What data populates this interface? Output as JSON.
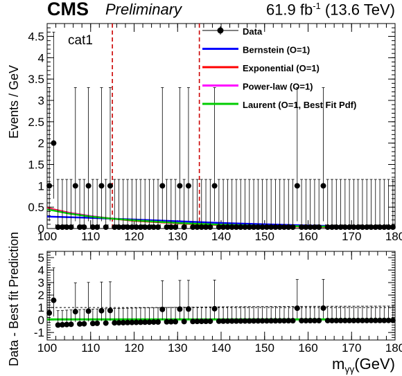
{
  "header": {
    "experiment": "CMS",
    "status": "Preliminary",
    "lumi_prefix": "61.9 fb",
    "lumi_sup": "-1",
    "lumi_suffix": " (13.6 TeV)"
  },
  "chart_data": [
    {
      "type": "scatter",
      "panel": "main",
      "category_label": "cat1",
      "ylabel": "Events / GeV",
      "xlim": [
        100,
        180
      ],
      "ylim": [
        0,
        4.8
      ],
      "yticks": [
        0,
        0.5,
        1,
        1.5,
        2,
        2.5,
        3,
        3.5,
        4,
        4.5
      ],
      "ytick_labels": [
        "0",
        "0.5",
        "1",
        "1.5",
        "2",
        "2.5",
        "3",
        "3.5",
        "4",
        "4.5"
      ],
      "xticks": [
        100,
        110,
        120,
        130,
        140,
        150,
        160,
        170,
        180
      ],
      "xtick_labels": [
        "100",
        "110",
        "120",
        "130",
        "140",
        "150",
        "160",
        "170",
        "180"
      ],
      "signal_window": [
        115,
        135
      ],
      "data": {
        "name": "Data",
        "x": [
          100.5,
          101.5,
          102.5,
          103.5,
          104.5,
          105.5,
          106.5,
          107.5,
          108.5,
          109.5,
          110.5,
          111.5,
          112.5,
          113.5,
          114.5,
          115.5,
          116.5,
          117.5,
          118.5,
          119.5,
          120.5,
          121.5,
          122.5,
          123.5,
          124.5,
          125.5,
          126.5,
          127.5,
          128.5,
          129.5,
          130.5,
          131.5,
          132.5,
          133.5,
          134.5,
          135.5,
          136.5,
          137.5,
          138.5,
          139.5,
          140.5,
          141.5,
          142.5,
          143.5,
          144.5,
          145.5,
          146.5,
          147.5,
          148.5,
          149.5,
          150.5,
          151.5,
          152.5,
          153.5,
          154.5,
          155.5,
          156.5,
          157.5,
          158.5,
          159.5,
          160.5,
          161.5,
          162.5,
          163.5,
          164.5,
          165.5,
          166.5,
          167.5,
          168.5,
          169.5,
          170.5,
          171.5,
          172.5,
          173.5,
          174.5,
          175.5,
          176.5,
          177.5,
          178.5,
          179.5
        ],
        "y": [
          1,
          2,
          0,
          0,
          0,
          0,
          1,
          0,
          0,
          1,
          0,
          0,
          1,
          0,
          1,
          0,
          0,
          0,
          0,
          0,
          0,
          0,
          0,
          0,
          0,
          0,
          1,
          0,
          0,
          0,
          1,
          0,
          1,
          0,
          0,
          0,
          0,
          0,
          1,
          0,
          0,
          0,
          0,
          0,
          0,
          0,
          0,
          0,
          0,
          0,
          0,
          0,
          0,
          0,
          0,
          0,
          0,
          1,
          0,
          0,
          0,
          0,
          0,
          1,
          0,
          0,
          0,
          0,
          0,
          0,
          0,
          0,
          0,
          0,
          0,
          0,
          0,
          0,
          0,
          0
        ],
        "err_up": [
          2.3,
          2.6,
          1.15,
          1.15,
          1.15,
          1.15,
          2.3,
          1.15,
          1.15,
          2.3,
          1.15,
          1.15,
          2.3,
          1.15,
          2.3,
          1.15,
          1.15,
          1.15,
          1.15,
          1.15,
          1.15,
          1.15,
          1.15,
          1.15,
          1.15,
          1.15,
          2.3,
          1.15,
          1.15,
          1.15,
          2.3,
          1.15,
          2.3,
          1.15,
          1.15,
          1.15,
          1.15,
          1.15,
          2.3,
          1.15,
          1.15,
          1.15,
          1.15,
          1.15,
          1.15,
          1.15,
          1.15,
          1.15,
          1.15,
          1.15,
          1.15,
          1.15,
          1.15,
          1.15,
          1.15,
          1.15,
          1.15,
          2.3,
          1.15,
          1.15,
          1.15,
          1.15,
          1.15,
          2.3,
          1.15,
          1.15,
          1.15,
          1.15,
          1.15,
          1.15,
          1.15,
          1.15,
          1.15,
          1.15,
          1.15,
          1.15,
          1.15,
          1.15,
          1.15,
          1.15
        ],
        "err_down": [
          0.83,
          1.3,
          0,
          0,
          0,
          0,
          0.83,
          0,
          0,
          0.83,
          0,
          0,
          0.83,
          0,
          0.83,
          0,
          0,
          0,
          0,
          0,
          0,
          0,
          0,
          0,
          0,
          0,
          0.83,
          0,
          0,
          0,
          0.83,
          0,
          0.83,
          0,
          0,
          0,
          0,
          0,
          0.83,
          0,
          0,
          0,
          0,
          0,
          0,
          0,
          0,
          0,
          0,
          0,
          0,
          0,
          0,
          0,
          0,
          0,
          0,
          0.83,
          0,
          0,
          0,
          0,
          0,
          0.83,
          0,
          0,
          0,
          0,
          0,
          0,
          0,
          0,
          0,
          0,
          0,
          0,
          0,
          0,
          0,
          0
        ],
        "color": "#000000"
      },
      "series": [
        {
          "name": "Bernstein (O=1)",
          "color": "#0000ff",
          "x": [
            100,
            110,
            120,
            130,
            140,
            150,
            160,
            170,
            180
          ],
          "values": [
            0.28,
            0.25,
            0.21,
            0.17,
            0.13,
            0.1,
            0.07,
            0.05,
            0.03
          ]
        },
        {
          "name": "Exponential (O=1)",
          "color": "#ff0000",
          "x": [
            100,
            105,
            110,
            115,
            120,
            130,
            140,
            150,
            160,
            170,
            180
          ],
          "values": [
            0.48,
            0.37,
            0.29,
            0.23,
            0.18,
            0.12,
            0.08,
            0.055,
            0.04,
            0.03,
            0.02
          ]
        },
        {
          "name": "Power-law (O=1)",
          "color": "#ff00ff",
          "x": [
            100,
            105,
            110,
            115,
            120,
            130,
            140,
            150,
            160,
            170,
            180
          ],
          "values": [
            0.46,
            0.36,
            0.29,
            0.23,
            0.19,
            0.13,
            0.09,
            0.065,
            0.05,
            0.04,
            0.03
          ]
        },
        {
          "name": "Laurent (O=1, Best Fit Pdf)",
          "color": "#00cc00",
          "x": [
            100,
            105,
            110,
            115,
            120,
            130,
            140,
            150,
            160,
            170,
            180
          ],
          "values": [
            0.45,
            0.35,
            0.28,
            0.23,
            0.19,
            0.13,
            0.09,
            0.065,
            0.05,
            0.04,
            0.03
          ]
        }
      ],
      "legend": {
        "placement": "top-right",
        "entries": [
          "Data",
          "Bernstein (O=1)",
          "Exponential (O=1)",
          "Power-law (O=1)",
          "Laurent (O=1, Best Fit Pdf)"
        ]
      }
    },
    {
      "type": "scatter",
      "panel": "ratio",
      "ylabel": "Data - Best fit Prediction",
      "xlabel_main": "m",
      "xlabel_sub": "γγ",
      "xlabel_unit": "(GeV)",
      "xlim": [
        100,
        180
      ],
      "ylim": [
        -1.6,
        5.5
      ],
      "yticks": [
        -1,
        0,
        1,
        2,
        3,
        4,
        5
      ],
      "ytick_labels": [
        "-1",
        "0",
        "1",
        "2",
        "3",
        "4",
        "5"
      ],
      "xticks": [
        100,
        110,
        120,
        130,
        140,
        150,
        160,
        170,
        180
      ],
      "xtick_labels": [
        "100",
        "110",
        "120",
        "130",
        "140",
        "150",
        "160",
        "170",
        "180"
      ],
      "reference_line": 1,
      "band_color": "#00cc00"
    }
  ]
}
